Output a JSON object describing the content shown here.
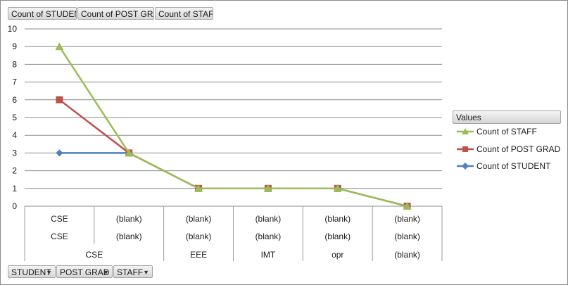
{
  "filter_buttons": [
    {
      "label": "Count of STUDENT"
    },
    {
      "label": "Count of POST GRAD"
    },
    {
      "label": "Count of STAFF"
    }
  ],
  "axis_buttons": [
    {
      "label": "STUDENT",
      "dropdown_icon": "dropdown-arrow-icon"
    },
    {
      "label": "POST GRAD",
      "dropdown_icon": "dropdown-arrow-icon"
    },
    {
      "label": "STAFF",
      "dropdown_icon": "dropdown-arrow-icon"
    }
  ],
  "legend": {
    "title": "Values",
    "items": [
      {
        "label": "Count of STAFF",
        "color": "#9bbb59",
        "marker": "triangle"
      },
      {
        "label": "Count of POST GRAD",
        "color": "#c0504d",
        "marker": "square"
      },
      {
        "label": "Count of STUDENT",
        "color": "#4f81bd",
        "marker": "diamond"
      }
    ]
  },
  "chart_data": {
    "type": "line",
    "title": "",
    "xlabel": "",
    "ylabel": "",
    "ylim": [
      0,
      10
    ],
    "yticks": [
      0,
      1,
      2,
      3,
      4,
      5,
      6,
      7,
      8,
      9,
      10
    ],
    "grid": true,
    "legend_position": "right",
    "categories": [
      {
        "student": "CSE",
        "post_grad": "CSE",
        "staff": "CSE"
      },
      {
        "student": "(blank)",
        "post_grad": "(blank)",
        "staff": "CSE"
      },
      {
        "student": "(blank)",
        "post_grad": "(blank)",
        "staff": "EEE"
      },
      {
        "student": "(blank)",
        "post_grad": "(blank)",
        "staff": "IMT"
      },
      {
        "student": "(blank)",
        "post_grad": "(blank)",
        "staff": "opr"
      },
      {
        "student": "(blank)",
        "post_grad": "(blank)",
        "staff": "(blank)"
      }
    ],
    "group_labels": [
      {
        "label": "CSE",
        "span": [
          0,
          1
        ]
      },
      {
        "label": "EEE",
        "span": [
          2,
          2
        ]
      },
      {
        "label": "IMT",
        "span": [
          3,
          3
        ]
      },
      {
        "label": "opr",
        "span": [
          4,
          4
        ]
      },
      {
        "label": "(blank)",
        "span": [
          5,
          5
        ]
      }
    ],
    "series": [
      {
        "name": "Count of STUDENT",
        "color": "#4f81bd",
        "marker": "diamond",
        "values": [
          3,
          3,
          null,
          null,
          null,
          null
        ]
      },
      {
        "name": "Count of POST GRAD",
        "color": "#c0504d",
        "marker": "square",
        "values": [
          6,
          3,
          1,
          1,
          1,
          0
        ]
      },
      {
        "name": "Count of STAFF",
        "color": "#9bbb59",
        "marker": "triangle",
        "values": [
          9,
          3,
          1,
          1,
          1,
          0
        ]
      }
    ]
  }
}
